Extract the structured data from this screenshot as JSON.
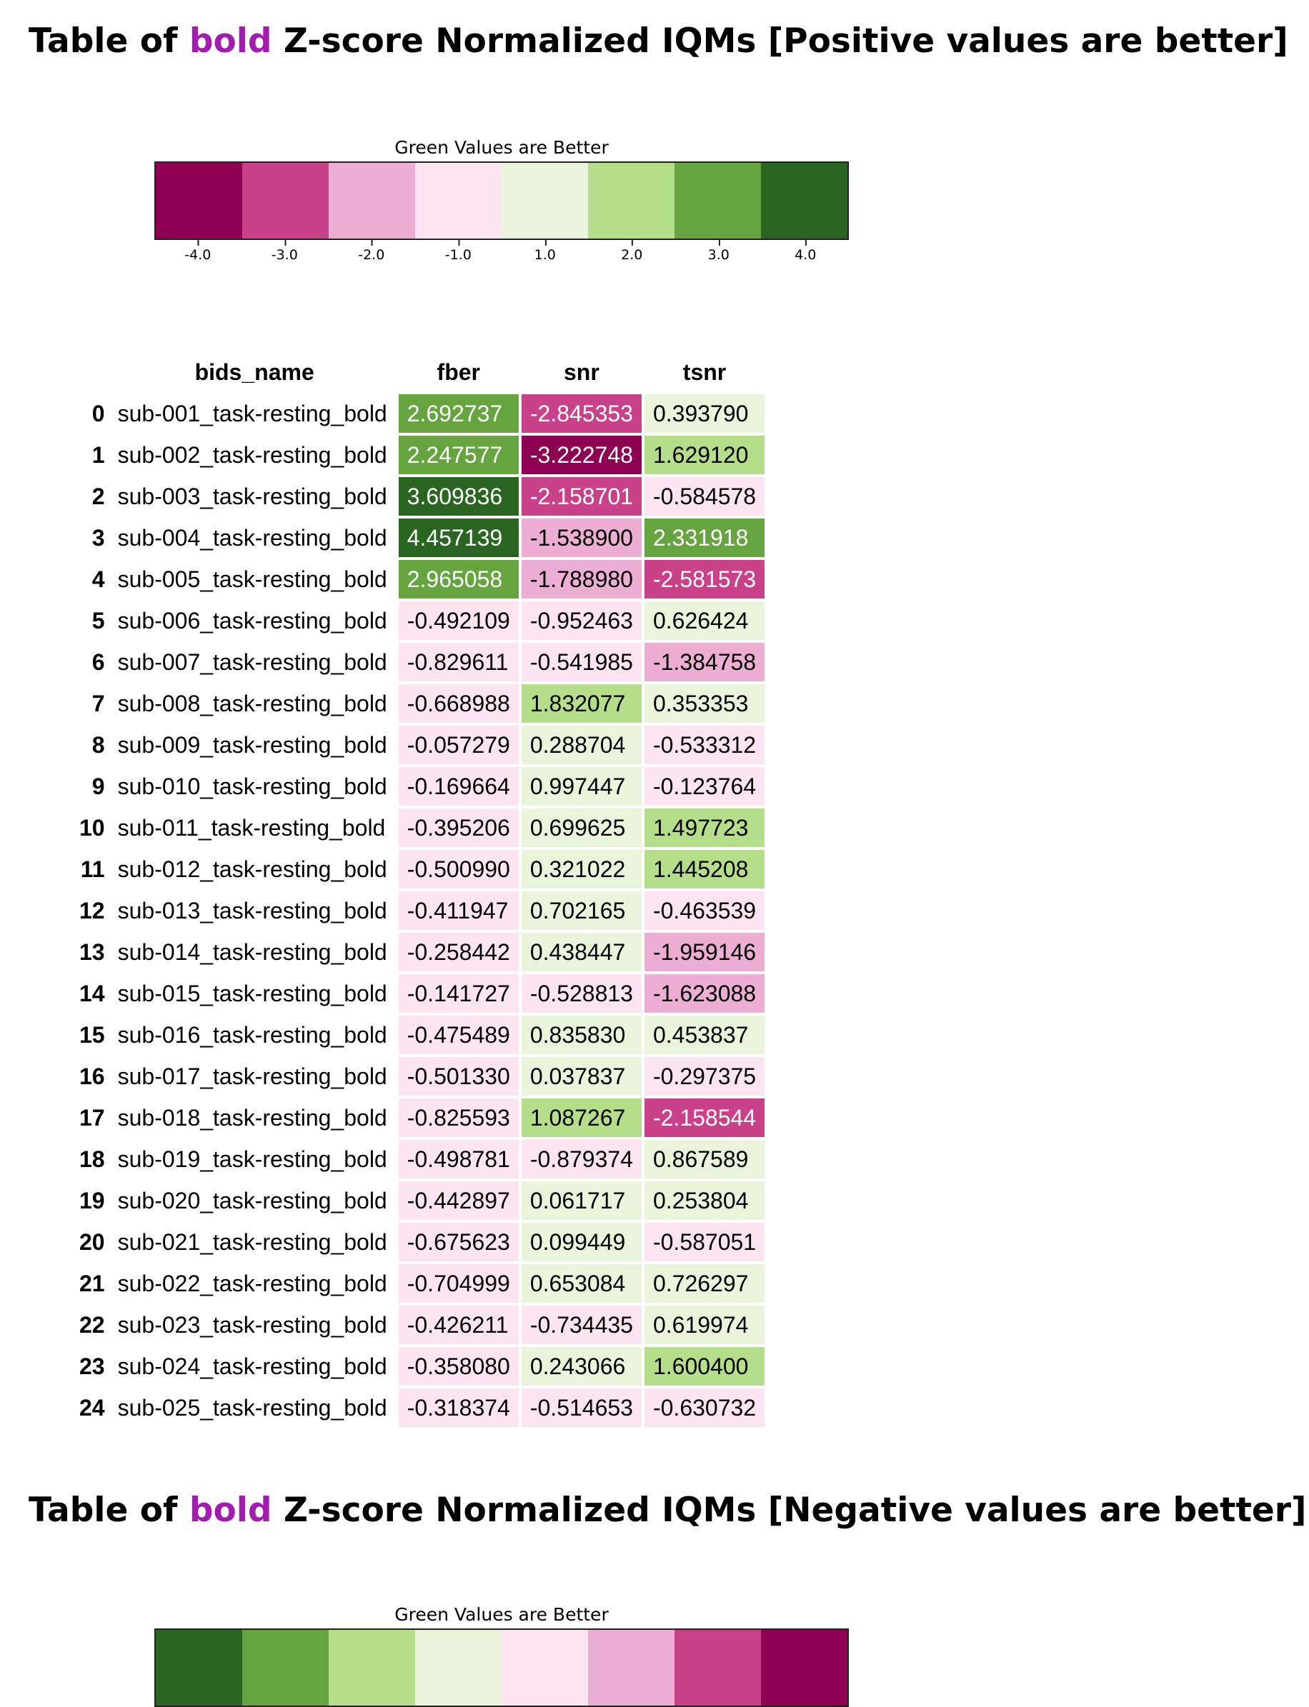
{
  "positive": {
    "title": {
      "prefix": "Table of",
      "highlight": "bold",
      "suffix": "Z-score Normalized IQMs [Positive values are better]"
    },
    "colorbar": {
      "caption": "Green Values are Better",
      "ticks": [
        "-4.0",
        "-3.0",
        "-2.0",
        "-1.0",
        "1.0",
        "2.0",
        "3.0",
        "4.0"
      ],
      "colors": [
        "#8e0152",
        "#c94189",
        "#ecaed2",
        "#fce4f0",
        "#eaf4da",
        "#b4de8a",
        "#65a43e",
        "#2a6522"
      ]
    },
    "table": {
      "columns": [
        "bids_name",
        "fber",
        "snr",
        "tsnr"
      ],
      "rows": [
        {
          "idx": "0",
          "name": "sub-001_task-resting_bold",
          "vals": [
            "2.692737",
            "-2.845353",
            "0.393790"
          ]
        },
        {
          "idx": "1",
          "name": "sub-002_task-resting_bold",
          "vals": [
            "2.247577",
            "-3.222748",
            "1.629120"
          ]
        },
        {
          "idx": "2",
          "name": "sub-003_task-resting_bold",
          "vals": [
            "3.609836",
            "-2.158701",
            "-0.584578"
          ]
        },
        {
          "idx": "3",
          "name": "sub-004_task-resting_bold",
          "vals": [
            "4.457139",
            "-1.538900",
            "2.331918"
          ]
        },
        {
          "idx": "4",
          "name": "sub-005_task-resting_bold",
          "vals": [
            "2.965058",
            "-1.788980",
            "-2.581573"
          ]
        },
        {
          "idx": "5",
          "name": "sub-006_task-resting_bold",
          "vals": [
            "-0.492109",
            "-0.952463",
            "0.626424"
          ]
        },
        {
          "idx": "6",
          "name": "sub-007_task-resting_bold",
          "vals": [
            "-0.829611",
            "-0.541985",
            "-1.384758"
          ]
        },
        {
          "idx": "7",
          "name": "sub-008_task-resting_bold",
          "vals": [
            "-0.668988",
            "1.832077",
            "0.353353"
          ]
        },
        {
          "idx": "8",
          "name": "sub-009_task-resting_bold",
          "vals": [
            "-0.057279",
            "0.288704",
            "-0.533312"
          ]
        },
        {
          "idx": "9",
          "name": "sub-010_task-resting_bold",
          "vals": [
            "-0.169664",
            "0.997447",
            "-0.123764"
          ]
        },
        {
          "idx": "10",
          "name": "sub-011_task-resting_bold",
          "vals": [
            "-0.395206",
            "0.699625",
            "1.497723"
          ]
        },
        {
          "idx": "11",
          "name": "sub-012_task-resting_bold",
          "vals": [
            "-0.500990",
            "0.321022",
            "1.445208"
          ]
        },
        {
          "idx": "12",
          "name": "sub-013_task-resting_bold",
          "vals": [
            "-0.411947",
            "0.702165",
            "-0.463539"
          ]
        },
        {
          "idx": "13",
          "name": "sub-014_task-resting_bold",
          "vals": [
            "-0.258442",
            "0.438447",
            "-1.959146"
          ]
        },
        {
          "idx": "14",
          "name": "sub-015_task-resting_bold",
          "vals": [
            "-0.141727",
            "-0.528813",
            "-1.623088"
          ]
        },
        {
          "idx": "15",
          "name": "sub-016_task-resting_bold",
          "vals": [
            "-0.475489",
            "0.835830",
            "0.453837"
          ]
        },
        {
          "idx": "16",
          "name": "sub-017_task-resting_bold",
          "vals": [
            "-0.501330",
            "0.037837",
            "-0.297375"
          ]
        },
        {
          "idx": "17",
          "name": "sub-018_task-resting_bold",
          "vals": [
            "-0.825593",
            "1.087267",
            "-2.158544"
          ]
        },
        {
          "idx": "18",
          "name": "sub-019_task-resting_bold",
          "vals": [
            "-0.498781",
            "-0.879374",
            "0.867589"
          ]
        },
        {
          "idx": "19",
          "name": "sub-020_task-resting_bold",
          "vals": [
            "-0.442897",
            "0.061717",
            "0.253804"
          ]
        },
        {
          "idx": "20",
          "name": "sub-021_task-resting_bold",
          "vals": [
            "-0.675623",
            "0.099449",
            "-0.587051"
          ]
        },
        {
          "idx": "21",
          "name": "sub-022_task-resting_bold",
          "vals": [
            "-0.704999",
            "0.653084",
            "0.726297"
          ]
        },
        {
          "idx": "22",
          "name": "sub-023_task-resting_bold",
          "vals": [
            "-0.426211",
            "-0.734435",
            "0.619974"
          ]
        },
        {
          "idx": "23",
          "name": "sub-024_task-resting_bold",
          "vals": [
            "-0.358080",
            "0.243066",
            "1.600400"
          ]
        },
        {
          "idx": "24",
          "name": "sub-025_task-resting_bold",
          "vals": [
            "-0.318374",
            "-0.514653",
            "-0.630732"
          ]
        }
      ]
    }
  },
  "negative": {
    "title": {
      "prefix": "Table of",
      "highlight": "bold",
      "suffix": "Z-score Normalized IQMs [Negative values are better]"
    },
    "colorbar": {
      "caption": "Green Values are Better",
      "colors": [
        "#2a6522",
        "#65a43e",
        "#b4de8a",
        "#eaf4da",
        "#fce4f0",
        "#ecaed2",
        "#c94189",
        "#8e0152"
      ]
    }
  }
}
